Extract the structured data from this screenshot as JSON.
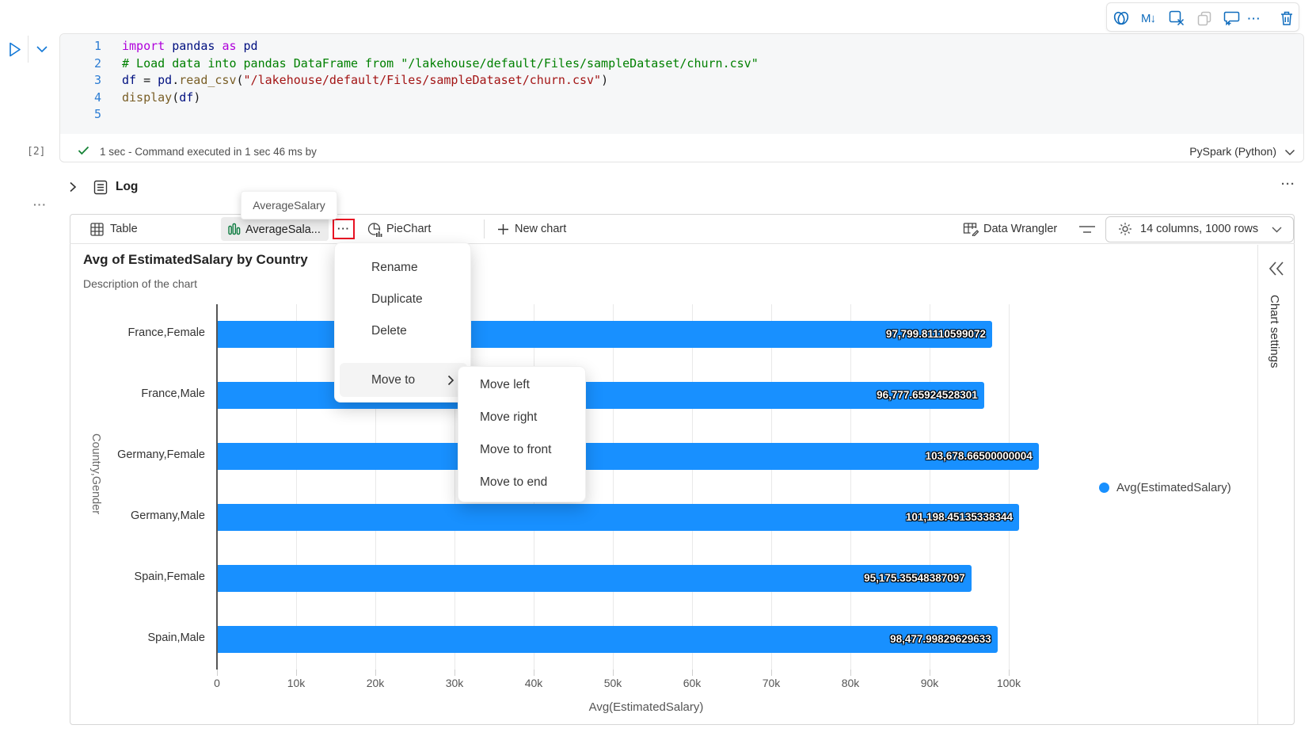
{
  "colors": {
    "accent_blue": "#0f6cbd",
    "bar_blue": "#1890ff",
    "tab_icon_green": "#0e7c41",
    "highlight_red": "#e81123",
    "check_green": "#148235"
  },
  "cell_toolbar": {
    "icons": [
      "copilot-icon",
      "markdown-convert-icon",
      "clear-output-icon",
      "copy-cell-icon",
      "comment-add-icon",
      "more-options-icon",
      "delete-cell-icon"
    ],
    "markdown_glyph": "M↓",
    "more_glyph": "···"
  },
  "code_cell": {
    "execution_count": "[2]",
    "status_text": "1 sec - Command executed in 1 sec 46 ms by",
    "kernel_label": "PySpark (Python)",
    "lines": [
      {
        "num": "1",
        "tokens": [
          [
            "kw",
            "import"
          ],
          [
            "pl",
            " "
          ],
          [
            "var",
            "pandas"
          ],
          [
            "pl",
            " "
          ],
          [
            "kw",
            "as"
          ],
          [
            "pl",
            " "
          ],
          [
            "var",
            "pd"
          ]
        ]
      },
      {
        "num": "2",
        "tokens": [
          [
            "com",
            "# Load data into pandas DataFrame from \"/lakehouse/default/Files/sampleDataset/churn.csv\""
          ]
        ]
      },
      {
        "num": "3",
        "tokens": [
          [
            "var",
            "df"
          ],
          [
            "pl",
            " = "
          ],
          [
            "var",
            "pd"
          ],
          [
            "pl",
            "."
          ],
          [
            "fn",
            "read_csv"
          ],
          [
            "pl",
            "("
          ],
          [
            "str",
            "\"/lakehouse/default/Files/sampleDataset/churn.csv\""
          ],
          [
            "pl",
            ")"
          ]
        ]
      },
      {
        "num": "4",
        "tokens": [
          [
            "fn",
            "display"
          ],
          [
            "pl",
            "("
          ],
          [
            "var",
            "df"
          ],
          [
            "pl",
            ")"
          ]
        ]
      },
      {
        "num": "5",
        "tokens": []
      }
    ]
  },
  "log_row": {
    "label": "Log",
    "more_glyph": "···"
  },
  "left_more_glyph": "···",
  "tooltip": {
    "text": "AverageSalary"
  },
  "tab_bar": {
    "tabs": [
      {
        "label": "Table",
        "icon": "table-grid-icon"
      },
      {
        "label": "AverageSala...",
        "icon": "bar-chart-icon",
        "selected": true,
        "full_name": "AverageSalary"
      },
      {
        "label": "PieChart",
        "icon": "pie-chart-icon"
      }
    ],
    "more_glyph": "···",
    "new_chart_label": "New chart",
    "data_wrangler_label": "Data Wrangler",
    "summary_label": "14 columns, 1000 rows"
  },
  "context_menu": {
    "items": [
      "Rename",
      "Duplicate",
      "Delete"
    ],
    "move_to_label": "Move to",
    "submenu_items": [
      "Move left",
      "Move right",
      "Move to front",
      "Move to end"
    ]
  },
  "chart_data": {
    "type": "bar",
    "orientation": "horizontal",
    "title": "Avg of EstimatedSalary by Country",
    "subtitle": "Description of the chart",
    "categories": [
      "France,Female",
      "France,Male",
      "Germany,Female",
      "Germany,Male",
      "Spain,Female",
      "Spain,Male"
    ],
    "series": [
      {
        "name": "Avg(EstimatedSalary)",
        "values": [
          97799.81110599072,
          96777.65924528301,
          103678.66500000004,
          101198.45135338344,
          95175.35548387097,
          98477.99829629633
        ]
      }
    ],
    "value_labels": [
      "97,799.81110599072",
      "96,777.65924528301",
      "103,678.66500000004",
      "101,198.45135338344",
      "95,175.35548387097",
      "98,477.99829629633"
    ],
    "xlabel": "Avg(EstimatedSalary)",
    "ylabel": "Country,Gender",
    "xlim": [
      0,
      110000
    ],
    "x_ticks": [
      "0",
      "10k",
      "20k",
      "30k",
      "40k",
      "50k",
      "60k",
      "70k",
      "80k",
      "90k",
      "100k"
    ],
    "x_tick_values": [
      0,
      10000,
      20000,
      30000,
      40000,
      50000,
      60000,
      70000,
      80000,
      90000,
      100000
    ],
    "grid": true,
    "legend_position": "right",
    "bar_color": "#1890ff"
  },
  "chart_settings": {
    "label": "Chart settings"
  }
}
